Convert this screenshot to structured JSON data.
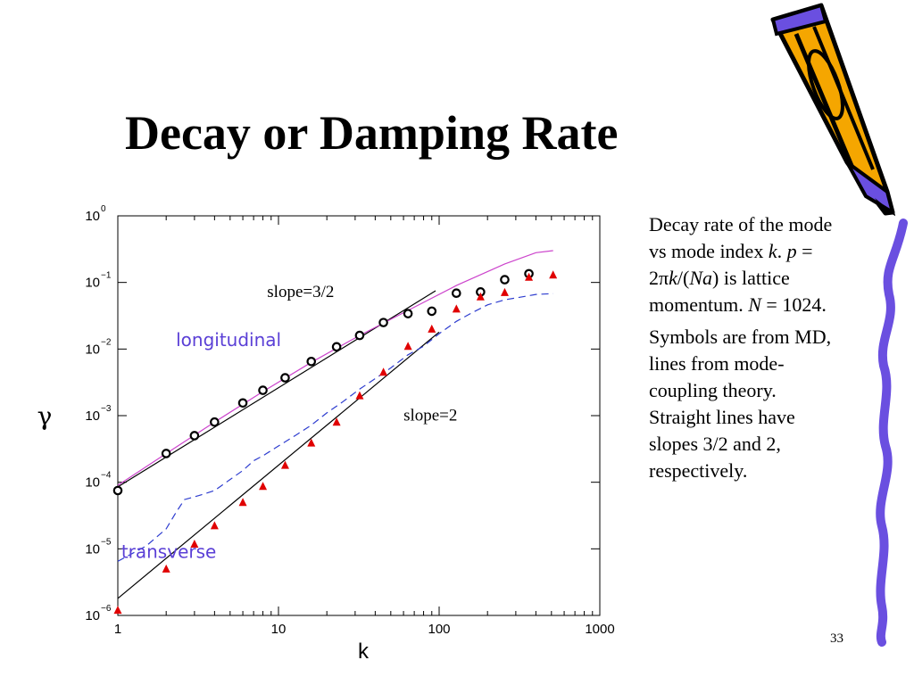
{
  "slide": {
    "title": "Decay or Damping Rate",
    "page_number": "33",
    "description_1": [
      {
        "t": "Decay rate of the mode vs mode index "
      },
      {
        "t": "k",
        "i": true
      },
      {
        "t": ". "
      },
      {
        "t": "p",
        "i": true
      },
      {
        "t": " = 2π"
      },
      {
        "t": "k",
        "i": true
      },
      {
        "t": "/("
      },
      {
        "t": "Na",
        "i": true
      },
      {
        "t": ") is lattice momentum. "
      },
      {
        "t": "N",
        "i": true
      },
      {
        "t": " = 1024."
      }
    ],
    "description_2": "Symbols are from MD, lines from mode-coupling theory.  Straight lines have slopes 3/2 and 2, respectively."
  },
  "chart_data": {
    "type": "scatter",
    "xscale": "log",
    "yscale": "log",
    "xlim": [
      1,
      1000
    ],
    "ylim": [
      1e-06,
      1
    ],
    "xlabel": "k",
    "ylabel": "γ",
    "xticks": [
      {
        "v": 1,
        "label": "1"
      },
      {
        "v": 10,
        "label": "10"
      },
      {
        "v": 100,
        "label": "100"
      },
      {
        "v": 1000,
        "label": "1000"
      }
    ],
    "yticks": [
      {
        "v": 1e-06,
        "base": "10",
        "exp": "−6"
      },
      {
        "v": 1e-05,
        "base": "10",
        "exp": "−5"
      },
      {
        "v": 0.0001,
        "base": "10",
        "exp": "−4"
      },
      {
        "v": 0.001,
        "base": "10",
        "exp": "−3"
      },
      {
        "v": 0.01,
        "base": "10",
        "exp": "−2"
      },
      {
        "v": 0.1,
        "base": "10",
        "exp": "−1"
      },
      {
        "v": 1,
        "base": "10",
        "exp": "0"
      }
    ],
    "annotations": [
      {
        "text": "slope=3/2",
        "x": 8.5,
        "y": 0.06,
        "font": "serif",
        "color": "#000000"
      },
      {
        "text": "slope=2",
        "x": 60,
        "y": 0.00085,
        "font": "serif",
        "color": "#000000"
      },
      {
        "text": "longitudinal",
        "x": 2.3,
        "y": 0.011,
        "font": "comic",
        "color": "#5a3fd6"
      },
      {
        "text": "transverse",
        "x": 1.05,
        "y": 7.3e-06,
        "font": "comic",
        "color": "#5a3fd6"
      }
    ],
    "series": [
      {
        "marker": "circle",
        "color": "#000000",
        "points": [
          [
            1,
            7.5e-05
          ],
          [
            2,
            0.00027
          ],
          [
            3,
            0.0005
          ],
          [
            4,
            0.0008
          ],
          [
            6,
            0.00155
          ],
          [
            8,
            0.0024
          ],
          [
            11,
            0.0037
          ],
          [
            16,
            0.0065
          ],
          [
            23,
            0.0108
          ],
          [
            32,
            0.016
          ],
          [
            45,
            0.025
          ],
          [
            64,
            0.034
          ],
          [
            90,
            0.037
          ],
          [
            128,
            0.069
          ],
          [
            181,
            0.072
          ],
          [
            256,
            0.11
          ],
          [
            362,
            0.135
          ]
        ]
      },
      {
        "marker": "triangle",
        "color": "#e00000",
        "points": [
          [
            1,
            1.2e-06
          ],
          [
            2,
            5e-06
          ],
          [
            3,
            1.18e-05
          ],
          [
            4,
            2.23e-05
          ],
          [
            6,
            5e-05
          ],
          [
            8,
            8.7e-05
          ],
          [
            11,
            0.00018
          ],
          [
            16,
            0.00039
          ],
          [
            23,
            0.0008
          ],
          [
            32,
            0.002
          ],
          [
            45,
            0.0045
          ],
          [
            64,
            0.011
          ],
          [
            90,
            0.02
          ],
          [
            128,
            0.04
          ],
          [
            181,
            0.061
          ],
          [
            256,
            0.071
          ],
          [
            362,
            0.12
          ],
          [
            512,
            0.13
          ]
        ]
      }
    ],
    "lines": [
      {
        "style": "solid",
        "color": "#000000",
        "points": [
          [
            1,
            8.5e-05
          ],
          [
            95,
            0.075
          ]
        ]
      },
      {
        "style": "solid",
        "color": "#000000",
        "points": [
          [
            1,
            1.8e-06
          ],
          [
            100,
            0.018
          ]
        ]
      },
      {
        "style": "solid",
        "color": "#cc44cc",
        "points": [
          [
            1,
            9e-05
          ],
          [
            2,
            0.00027
          ],
          [
            4,
            0.0008
          ],
          [
            8,
            0.0023
          ],
          [
            16,
            0.0063
          ],
          [
            32,
            0.016
          ],
          [
            64,
            0.038
          ],
          [
            128,
            0.09
          ],
          [
            256,
            0.19
          ],
          [
            400,
            0.28
          ],
          [
            512,
            0.3
          ]
        ]
      },
      {
        "style": "dashed",
        "color": "#2d3ccf",
        "points": [
          [
            1,
            6.5e-06
          ],
          [
            1.5,
            1.1e-05
          ],
          [
            2,
            2e-05
          ],
          [
            2.3,
            3.5e-05
          ],
          [
            2.6,
            5.5e-05
          ],
          [
            3.2,
            6.3e-05
          ],
          [
            4,
            7.5e-05
          ],
          [
            5,
            0.00011
          ],
          [
            6,
            0.00015
          ],
          [
            7,
            0.00021
          ],
          [
            8,
            0.00025
          ],
          [
            10,
            0.00035
          ],
          [
            13,
            0.00052
          ],
          [
            16,
            0.00072
          ],
          [
            20,
            0.0011
          ],
          [
            25,
            0.0016
          ],
          [
            32,
            0.0025
          ],
          [
            40,
            0.0036
          ],
          [
            50,
            0.0052
          ],
          [
            64,
            0.0082
          ],
          [
            80,
            0.011
          ],
          [
            100,
            0.017
          ],
          [
            128,
            0.026
          ],
          [
            160,
            0.035
          ],
          [
            200,
            0.046
          ],
          [
            256,
            0.055
          ],
          [
            320,
            0.06
          ],
          [
            400,
            0.066
          ],
          [
            512,
            0.068
          ]
        ]
      }
    ]
  }
}
